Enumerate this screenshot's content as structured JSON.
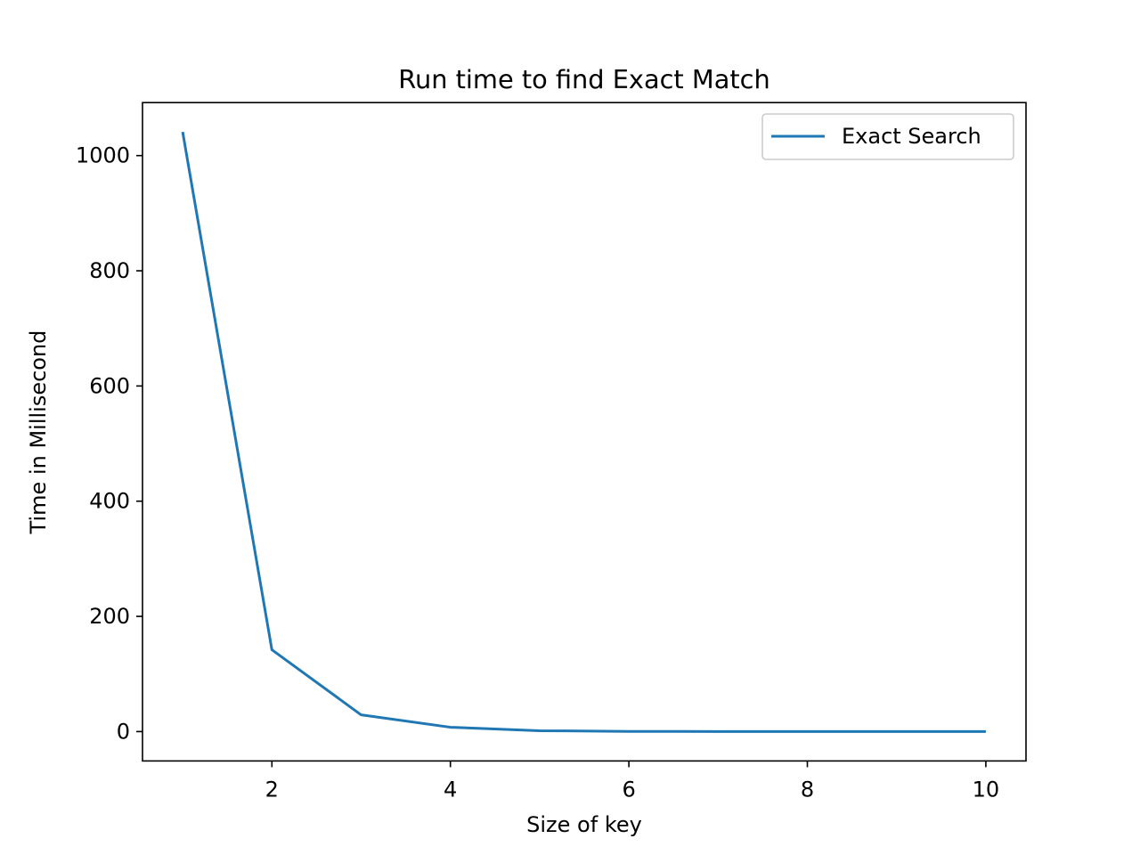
{
  "chart_data": {
    "type": "line",
    "title": "Run time to find Exact Match",
    "xlabel": "Size of key",
    "ylabel": "Time in Millisecond",
    "xlim": [
      0.55,
      10.45
    ],
    "ylim": [
      -51,
      1092
    ],
    "xticks": [
      2,
      4,
      6,
      8,
      10
    ],
    "yticks": [
      0,
      200,
      400,
      600,
      800,
      1000
    ],
    "grid": false,
    "legend_position": "upper right",
    "series": [
      {
        "name": "Exact Search",
        "color": "#1f77b4",
        "x": [
          1,
          2,
          3,
          4,
          5,
          6,
          7,
          8,
          9,
          10
        ],
        "y": [
          1041,
          142,
          29,
          7.5,
          1.5,
          0.3,
          0.1,
          0.05,
          0.02,
          0.01
        ]
      }
    ]
  }
}
